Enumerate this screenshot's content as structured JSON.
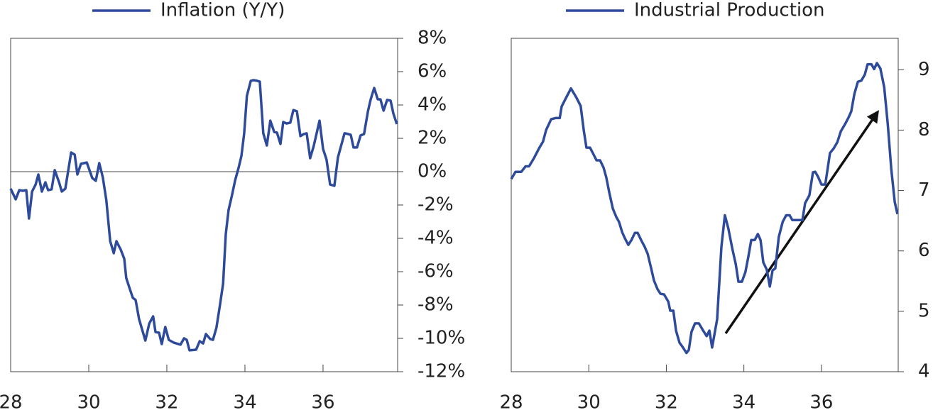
{
  "chart_data": [
    {
      "type": "line",
      "legend": "top",
      "x": [
        28.0,
        28.13,
        28.22,
        28.31,
        28.4,
        28.47,
        28.55,
        28.64,
        28.71,
        28.8,
        28.89,
        28.96,
        29.05,
        29.13,
        29.24,
        29.31,
        29.4,
        29.55,
        29.64,
        29.71,
        29.8,
        29.95,
        30.09,
        30.18,
        30.27,
        30.36,
        30.45,
        30.55,
        30.64,
        30.71,
        30.82,
        30.91,
        30.96,
        31.05,
        31.13,
        31.2,
        31.29,
        31.45,
        31.55,
        31.65,
        31.71,
        31.8,
        31.87,
        31.96,
        32.05,
        32.18,
        32.35,
        32.44,
        32.51,
        32.58,
        32.75,
        32.84,
        32.93,
        33.0,
        33.11,
        33.18,
        33.27,
        33.36,
        33.44,
        33.51,
        33.58,
        33.67,
        33.75,
        33.84,
        33.91,
        33.98,
        34.05,
        34.15,
        34.22,
        34.31,
        34.38,
        34.47,
        34.56,
        34.65,
        34.75,
        34.82,
        34.91,
        34.98,
        35.07,
        35.16,
        35.24,
        35.33,
        35.42,
        35.51,
        35.58,
        35.67,
        35.76,
        35.91,
        36.0,
        36.09,
        36.18,
        36.29,
        36.38,
        36.55,
        36.64,
        36.71,
        36.78,
        36.87,
        36.96,
        37.05,
        37.15,
        37.22,
        37.31,
        37.4,
        37.47,
        37.55,
        37.64,
        37.73,
        37.8,
        37.89
      ],
      "series": [
        {
          "name": "Inflation (Y/Y)",
          "color": "#2e4a9a",
          "values": [
            -1.02,
            -1.66,
            -1.11,
            -1.15,
            -1.11,
            -2.81,
            -1.19,
            -0.77,
            -0.17,
            -1.19,
            -0.64,
            -1.11,
            -1.06,
            0.09,
            -0.64,
            -1.19,
            -1.02,
            1.15,
            1.02,
            -0.17,
            0.47,
            0.55,
            -0.38,
            -0.55,
            0.51,
            -0.34,
            -1.7,
            -4.17,
            -4.89,
            -4.17,
            -4.68,
            -5.23,
            -6.38,
            -7.02,
            -7.57,
            -7.7,
            -8.85,
            -10.13,
            -9.11,
            -8.68,
            -9.62,
            -9.66,
            -10.34,
            -9.32,
            -10.09,
            -10.26,
            -10.38,
            -10.0,
            -10.09,
            -10.72,
            -10.68,
            -10.17,
            -10.3,
            -9.74,
            -10.04,
            -10.09,
            -9.36,
            -8.0,
            -6.72,
            -3.74,
            -2.3,
            -1.4,
            -0.51,
            0.26,
            0.94,
            2.3,
            4.55,
            5.45,
            5.49,
            5.45,
            5.4,
            2.3,
            1.57,
            3.06,
            2.38,
            2.34,
            1.66,
            2.98,
            2.89,
            2.94,
            3.7,
            3.62,
            2.13,
            2.26,
            2.3,
            0.81,
            1.53,
            3.06,
            1.36,
            0.72,
            -0.77,
            -0.85,
            0.85,
            2.3,
            2.26,
            2.21,
            1.45,
            1.45,
            2.17,
            2.26,
            3.62,
            4.34,
            5.02,
            4.34,
            4.34,
            3.66,
            4.3,
            4.26,
            3.49,
            2.85
          ]
        }
      ],
      "xlim": [
        28,
        37.91
      ],
      "xticks": [
        28,
        30,
        32,
        34,
        36
      ],
      "ylim": [
        -12,
        8
      ],
      "yticks": [
        {
          "value": -12,
          "label": "-12%"
        },
        {
          "value": -10,
          "label": "-10%"
        },
        {
          "value": -8,
          "label": "-8%"
        },
        {
          "value": -6,
          "label": "-6%"
        },
        {
          "value": -4,
          "label": "-4%"
        },
        {
          "value": -2,
          "label": "-2%"
        },
        {
          "value": 0,
          "label": "0%"
        },
        {
          "value": 2,
          "label": "2%"
        },
        {
          "value": 4,
          "label": "4%"
        },
        {
          "value": 6,
          "label": "6%"
        },
        {
          "value": 8,
          "label": "8%"
        }
      ],
      "zero_line": true
    },
    {
      "type": "line",
      "legend": "top",
      "x": [
        28.0,
        28.11,
        28.26,
        28.37,
        28.46,
        28.59,
        28.71,
        28.82,
        28.9,
        29.03,
        29.14,
        29.25,
        29.3,
        29.41,
        29.54,
        29.68,
        29.79,
        29.87,
        29.94,
        30.03,
        30.12,
        30.2,
        30.29,
        30.38,
        30.45,
        30.53,
        30.62,
        30.71,
        30.78,
        30.86,
        30.93,
        31.02,
        31.1,
        31.19,
        31.26,
        31.35,
        31.44,
        31.52,
        31.61,
        31.68,
        31.77,
        31.85,
        31.94,
        32.05,
        32.1,
        32.18,
        32.25,
        32.34,
        32.43,
        32.52,
        32.58,
        32.65,
        32.74,
        32.84,
        32.95,
        33.04,
        33.11,
        33.18,
        33.31,
        33.42,
        33.51,
        33.6,
        33.7,
        33.79,
        33.86,
        33.95,
        34.04,
        34.12,
        34.19,
        34.28,
        34.36,
        34.43,
        34.5,
        34.59,
        34.67,
        34.74,
        34.81,
        34.9,
        35.0,
        35.09,
        35.18,
        35.25,
        35.44,
        35.51,
        35.58,
        35.69,
        35.78,
        35.84,
        35.91,
        36.0,
        36.1,
        36.22,
        36.32,
        36.41,
        36.5,
        36.61,
        36.7,
        36.77,
        36.85,
        36.94,
        37.03,
        37.12,
        37.19,
        37.29,
        37.36,
        37.43,
        37.52,
        37.62,
        37.71,
        37.8,
        37.89,
        37.96
      ],
      "series": [
        {
          "name": "Industrial Production",
          "color": "#2e4a9a",
          "values": [
            7.19,
            7.31,
            7.31,
            7.4,
            7.4,
            7.54,
            7.69,
            7.81,
            8.0,
            8.18,
            8.2,
            8.2,
            8.39,
            8.53,
            8.69,
            8.54,
            8.4,
            8.0,
            7.71,
            7.71,
            7.6,
            7.5,
            7.5,
            7.38,
            7.22,
            6.96,
            6.7,
            6.56,
            6.48,
            6.31,
            6.21,
            6.1,
            6.18,
            6.3,
            6.3,
            6.18,
            6.07,
            5.95,
            5.71,
            5.51,
            5.37,
            5.29,
            5.28,
            5.16,
            5.01,
            5.01,
            4.68,
            4.48,
            4.4,
            4.31,
            4.36,
            4.66,
            4.8,
            4.8,
            4.68,
            4.59,
            4.68,
            4.4,
            4.87,
            6.07,
            6.59,
            6.37,
            6.04,
            5.78,
            5.49,
            5.49,
            5.65,
            5.92,
            6.18,
            6.18,
            6.28,
            6.18,
            5.81,
            5.69,
            5.41,
            5.68,
            5.71,
            6.23,
            6.48,
            6.59,
            6.59,
            6.51,
            6.51,
            6.51,
            6.79,
            6.92,
            7.3,
            7.31,
            7.23,
            7.1,
            7.1,
            7.62,
            7.7,
            7.8,
            7.98,
            8.1,
            8.21,
            8.31,
            8.6,
            8.8,
            8.82,
            8.92,
            9.09,
            9.09,
            9.01,
            9.11,
            9.02,
            8.71,
            8.1,
            7.36,
            6.81,
            6.61
          ]
        }
      ],
      "xlim": [
        28,
        37.98
      ],
      "xticks": [
        28,
        30,
        32,
        34,
        36
      ],
      "ylim": [
        4,
        9.52
      ],
      "yticks": [
        4,
        5,
        6,
        7,
        8,
        9
      ],
      "zero_line": false
    }
  ]
}
